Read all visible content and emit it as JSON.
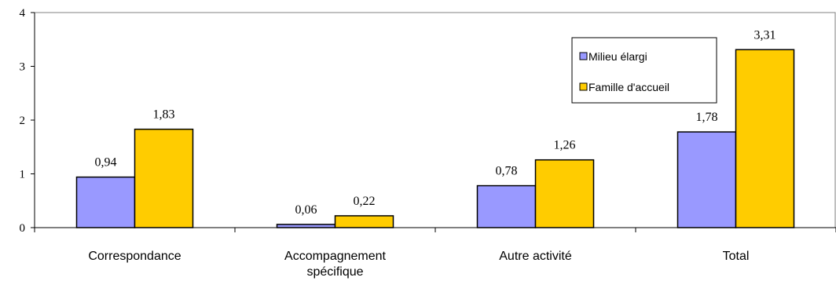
{
  "chart_data": {
    "type": "bar",
    "categories": [
      [
        "Correspondance"
      ],
      [
        "Accompagnement",
        "spécifique"
      ],
      [
        "Autre activité"
      ],
      [
        "Total"
      ]
    ],
    "series": [
      {
        "name": "Milieu élargi",
        "values": [
          0.94,
          0.06,
          0.78,
          1.78
        ],
        "labels": [
          "0,94",
          "0,06",
          "0,78",
          "1,78"
        ],
        "color": "#9999ff"
      },
      {
        "name": "Famille d'accueil",
        "values": [
          1.83,
          0.22,
          1.26,
          3.31
        ],
        "labels": [
          "1,83",
          "0,22",
          "1,26",
          "3,31"
        ],
        "color": "#ffcc00"
      }
    ],
    "y_ticks": [
      "0",
      "1",
      "2",
      "3",
      "4"
    ],
    "ylim": [
      0,
      4
    ],
    "grid": false,
    "legend_position": "top-right"
  }
}
